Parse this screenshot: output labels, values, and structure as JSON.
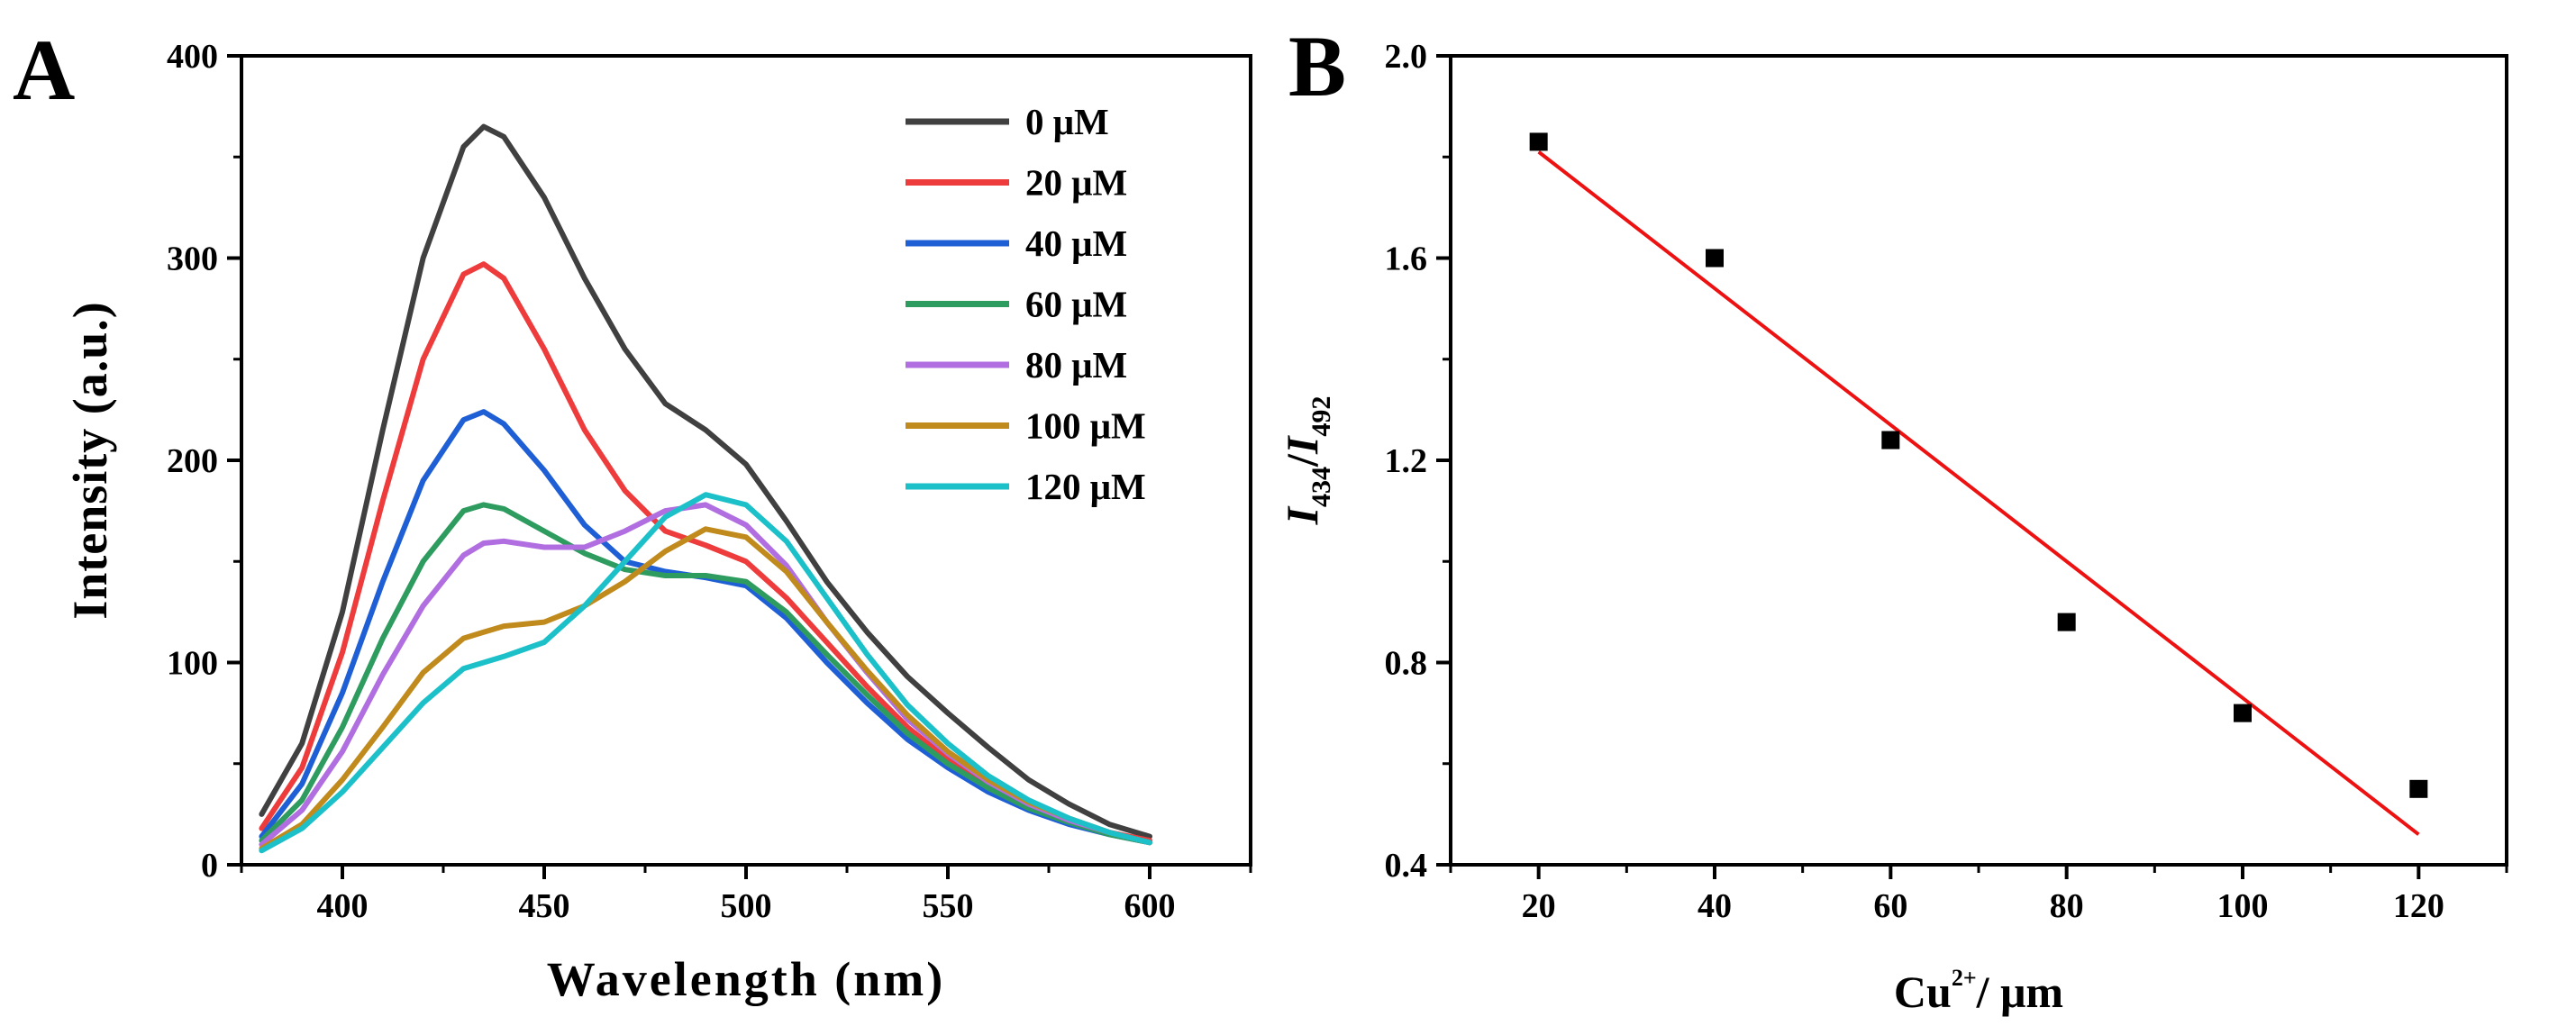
{
  "panels": {
    "a": {
      "letter": "A"
    },
    "b": {
      "letter": "B"
    }
  },
  "chart_data": [
    {
      "id": "A",
      "type": "line",
      "title": "",
      "xlabel": "Wavelength (nm)",
      "ylabel": "Intensity (a.u.)",
      "xlim": [
        375,
        625
      ],
      "ylim": [
        0,
        400
      ],
      "xticks": [
        400,
        450,
        500,
        550,
        600
      ],
      "yticks": [
        0,
        100,
        200,
        300,
        400
      ],
      "xtick_labels": [
        "400",
        "450",
        "500",
        "550",
        "600"
      ],
      "ytick_labels": [
        "0",
        "100",
        "200",
        "300",
        "400"
      ],
      "legend_position": "top-right",
      "x": [
        380,
        390,
        400,
        410,
        420,
        430,
        435,
        440,
        450,
        460,
        470,
        480,
        490,
        500,
        510,
        520,
        530,
        540,
        550,
        560,
        570,
        580,
        590,
        600
      ],
      "series": [
        {
          "name": "0 μM",
          "color": "#404040",
          "values": [
            25,
            60,
            125,
            215,
            300,
            355,
            365,
            360,
            330,
            290,
            255,
            228,
            215,
            198,
            170,
            140,
            115,
            93,
            75,
            58,
            42,
            30,
            20,
            14
          ]
        },
        {
          "name": "20 μM",
          "color": "#ee3b3b",
          "values": [
            18,
            48,
            105,
            180,
            250,
            292,
            297,
            290,
            255,
            215,
            185,
            165,
            158,
            150,
            132,
            110,
            88,
            68,
            52,
            40,
            30,
            22,
            16,
            12
          ]
        },
        {
          "name": "40 μM",
          "color": "#1f5fd6",
          "values": [
            14,
            40,
            85,
            140,
            190,
            220,
            224,
            218,
            195,
            168,
            150,
            145,
            142,
            138,
            122,
            100,
            80,
            62,
            48,
            36,
            27,
            20,
            15,
            11
          ]
        },
        {
          "name": "60 μM",
          "color": "#2e9b5f",
          "values": [
            12,
            32,
            68,
            112,
            150,
            175,
            178,
            176,
            165,
            154,
            146,
            143,
            143,
            140,
            125,
            104,
            84,
            65,
            50,
            38,
            28,
            21,
            15,
            11
          ]
        },
        {
          "name": "80 μM",
          "color": "#b06ee0",
          "values": [
            10,
            27,
            56,
            94,
            128,
            153,
            159,
            160,
            157,
            157,
            165,
            175,
            178,
            168,
            148,
            120,
            95,
            72,
            55,
            41,
            30,
            22,
            16,
            11
          ]
        },
        {
          "name": "100 μM",
          "color": "#c08b1c",
          "values": [
            8,
            20,
            42,
            68,
            95,
            112,
            115,
            118,
            120,
            128,
            140,
            155,
            166,
            162,
            145,
            120,
            96,
            74,
            56,
            42,
            31,
            23,
            16,
            11
          ]
        },
        {
          "name": "120 μM",
          "color": "#1cc0c9",
          "values": [
            7,
            18,
            36,
            58,
            80,
            97,
            100,
            103,
            110,
            128,
            150,
            172,
            183,
            178,
            160,
            132,
            104,
            79,
            60,
            44,
            32,
            23,
            16,
            11
          ]
        }
      ]
    },
    {
      "id": "B",
      "type": "scatter",
      "title": "",
      "xlabel": "Cu 2+ / μm",
      "xlabel_base": "Cu",
      "xlabel_sup": "2+",
      "xlabel_rest": "/ μm",
      "ylabel": "I 434 / I 492",
      "ylabel_i": "I",
      "ylabel_sub1": "434",
      "ylabel_slash": "/",
      "ylabel_sub2": "492",
      "xlim": [
        10,
        130
      ],
      "ylim": [
        0.4,
        2.0
      ],
      "xticks": [
        20,
        40,
        60,
        80,
        100,
        120
      ],
      "yticks": [
        0.4,
        0.8,
        1.2,
        1.6,
        2.0
      ],
      "xtick_labels": [
        "20",
        "40",
        "60",
        "80",
        "100",
        "120"
      ],
      "ytick_labels": [
        "0.4",
        "0.8",
        "1.2",
        "1.6",
        "2.0"
      ],
      "points": {
        "x": [
          20,
          40,
          60,
          80,
          100,
          120
        ],
        "y": [
          1.83,
          1.6,
          1.24,
          0.88,
          0.7,
          0.55
        ],
        "color": "#000000"
      },
      "fit_line": {
        "x": [
          20,
          120
        ],
        "y": [
          1.81,
          0.46
        ],
        "color": "#ee1111"
      }
    }
  ]
}
